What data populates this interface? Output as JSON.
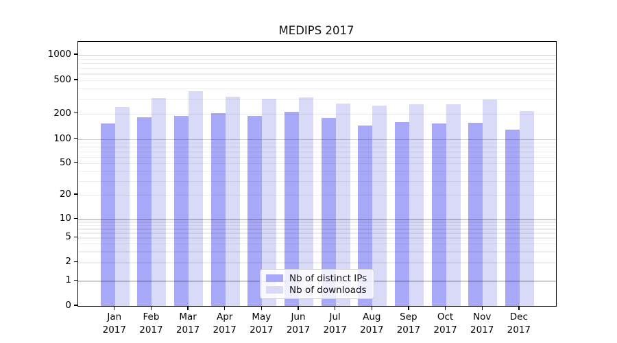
{
  "title": "MEDIPS 2017",
  "legend": {
    "entries": [
      {
        "label": "Nb of distinct IPs",
        "color": "#a8a8f8"
      },
      {
        "label": "Nb of downloads",
        "color": "#d9d9f8"
      }
    ]
  },
  "chart_data": {
    "type": "bar",
    "title": "MEDIPS 2017",
    "categories": [
      "Jan 2017",
      "Feb 2017",
      "Mar 2017",
      "Apr 2017",
      "May 2017",
      "Jun 2017",
      "Jul 2017",
      "Aug 2017",
      "Sep 2017",
      "Oct 2017",
      "Nov 2017",
      "Dec 2017"
    ],
    "series": [
      {
        "name": "Nb of distinct IPs",
        "color": "#a8a8f8",
        "values": [
          152,
          181,
          189,
          204,
          190,
          212,
          179,
          146,
          158,
          153,
          156,
          129
        ]
      },
      {
        "name": "Nb of downloads",
        "color": "#d9d9f8",
        "values": [
          242,
          308,
          372,
          318,
          299,
          311,
          264,
          249,
          260,
          258,
          294,
          215
        ]
      }
    ],
    "xlabel": "",
    "ylabel": "",
    "yscale": "symlog",
    "yticks": [
      1000,
      500,
      200,
      100,
      50,
      20,
      10,
      5,
      2,
      1,
      0
    ],
    "ylim": [
      0,
      1450
    ],
    "grid": true,
    "gridline_color_major": "#c9c9c9",
    "gridline_color_minor": "#efefef",
    "legend_position": "lower center"
  }
}
